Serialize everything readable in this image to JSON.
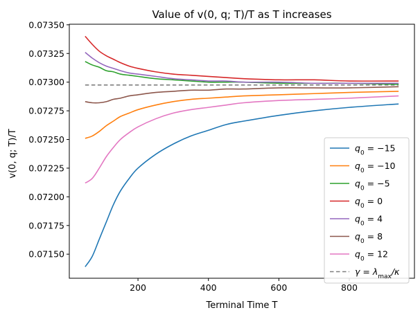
{
  "chart_data": {
    "type": "line",
    "title": "Value of v(0, q; T)/T as T increases",
    "xlabel": "Terminal Time T",
    "ylabel": "v(0, q; T)/T",
    "xlim": [
      5,
      985
    ],
    "ylim": [
      0.07129,
      0.073505
    ],
    "x_ticks": [
      200,
      400,
      600,
      800
    ],
    "y_ticks": [
      0.0715,
      0.07175,
      0.072,
      0.07225,
      0.0725,
      0.07275,
      0.073,
      0.07325,
      0.0735
    ],
    "y_tick_labels": [
      "0.07150",
      "0.07175",
      "0.07200",
      "0.07225",
      "0.07250",
      "0.07275",
      "0.07300",
      "0.07325",
      "0.07350"
    ],
    "legend_position": "lower-right",
    "x": [
      50,
      70,
      90,
      110,
      130,
      150,
      175,
      200,
      250,
      300,
      350,
      400,
      450,
      500,
      600,
      700,
      800,
      940
    ],
    "series": [
      {
        "name": "q0 = −15",
        "color": "#1f77b4",
        "dashed": false,
        "values": [
          0.07139,
          0.07148,
          0.07163,
          0.07178,
          0.07193,
          0.07205,
          0.07216,
          0.07225,
          0.07237,
          0.07246,
          0.07253,
          0.07258,
          0.07263,
          0.07266,
          0.07271,
          0.07275,
          0.07278,
          0.07281
        ]
      },
      {
        "name": "q0 = −10",
        "color": "#ff7f0e",
        "dashed": false,
        "values": [
          0.07251,
          0.07253,
          0.07257,
          0.07262,
          0.07266,
          0.0727,
          0.07273,
          0.07276,
          0.0728,
          0.07283,
          0.07285,
          0.07286,
          0.07287,
          0.07288,
          0.07289,
          0.0729,
          0.07291,
          0.07292
        ]
      },
      {
        "name": "q0 = −5",
        "color": "#2ca02c",
        "dashed": false,
        "values": [
          0.07318,
          0.07315,
          0.07313,
          0.0731,
          0.07309,
          0.07307,
          0.07306,
          0.07305,
          0.07303,
          0.07302,
          0.07301,
          0.073,
          0.073,
          0.073,
          0.07299,
          0.07299,
          0.07299,
          0.07298
        ]
      },
      {
        "name": "q0 = 0",
        "color": "#d62728",
        "dashed": false,
        "values": [
          0.0734,
          0.07333,
          0.07327,
          0.07323,
          0.0732,
          0.07317,
          0.07314,
          0.07312,
          0.07309,
          0.07307,
          0.07306,
          0.07305,
          0.07304,
          0.07303,
          0.07302,
          0.07302,
          0.07301,
          0.07301
        ]
      },
      {
        "name": "q0 = 4",
        "color": "#9467bd",
        "dashed": false,
        "values": [
          0.07326,
          0.07321,
          0.07317,
          0.07314,
          0.07312,
          0.0731,
          0.07308,
          0.07307,
          0.07305,
          0.07303,
          0.07302,
          0.07301,
          0.07301,
          0.073,
          0.073,
          0.07299,
          0.07299,
          0.07299
        ]
      },
      {
        "name": "q0 = 8",
        "color": "#8c564b",
        "dashed": false,
        "values": [
          0.07283,
          0.07282,
          0.07282,
          0.07283,
          0.07285,
          0.07286,
          0.07288,
          0.07289,
          0.07291,
          0.07292,
          0.07293,
          0.07293,
          0.07294,
          0.07294,
          0.07295,
          0.07295,
          0.07295,
          0.07296
        ]
      },
      {
        "name": "q0 = 12",
        "color": "#e377c2",
        "dashed": false,
        "values": [
          0.07212,
          0.07216,
          0.07225,
          0.07235,
          0.07243,
          0.0725,
          0.07256,
          0.07261,
          0.07268,
          0.07273,
          0.07276,
          0.07278,
          0.0728,
          0.07282,
          0.07284,
          0.07285,
          0.07286,
          0.07288
        ]
      },
      {
        "name": "γ = λmax/κ",
        "color": "#7f7f7f",
        "dashed": true,
        "values": [
          0.072975,
          0.072975,
          0.072975,
          0.072975,
          0.072975,
          0.072975,
          0.072975,
          0.072975,
          0.072975,
          0.072975,
          0.072975,
          0.072975,
          0.072975,
          0.072975,
          0.072975,
          0.072975,
          0.072975,
          0.072975
        ]
      }
    ]
  }
}
